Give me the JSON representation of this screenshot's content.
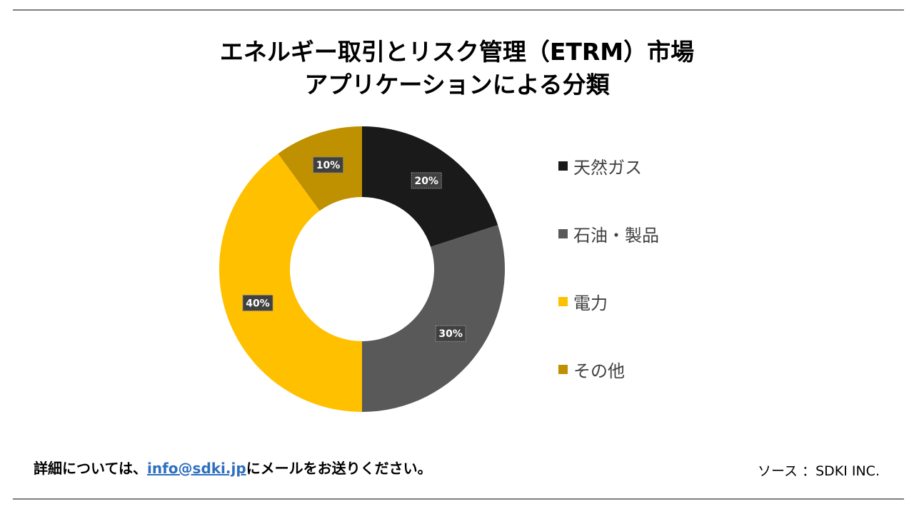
{
  "title": {
    "line1": "エネルギー取引とリスク管理（ETRM）市場",
    "line2": "アプリケーションによる分類"
  },
  "chart_data": {
    "type": "pie",
    "variant": "donut",
    "title": "エネルギー取引とリスク管理（ETRM）市場 アプリケーションによる分類",
    "categories": [
      "天然ガス",
      "石油・製品",
      "電力",
      "その他"
    ],
    "values": [
      20,
      30,
      40,
      10
    ],
    "data_labels": [
      "20%",
      "30%",
      "40%",
      "10%"
    ],
    "colors": [
      "#1a1a1a",
      "#595959",
      "#ffc000",
      "#bf9000"
    ],
    "legend_position": "right"
  },
  "footer": {
    "note_prefix": "詳細については、",
    "email": "info@sdki.jp",
    "note_suffix": "にメールをお送りください。",
    "source": "ソース ：SDKI INC."
  }
}
